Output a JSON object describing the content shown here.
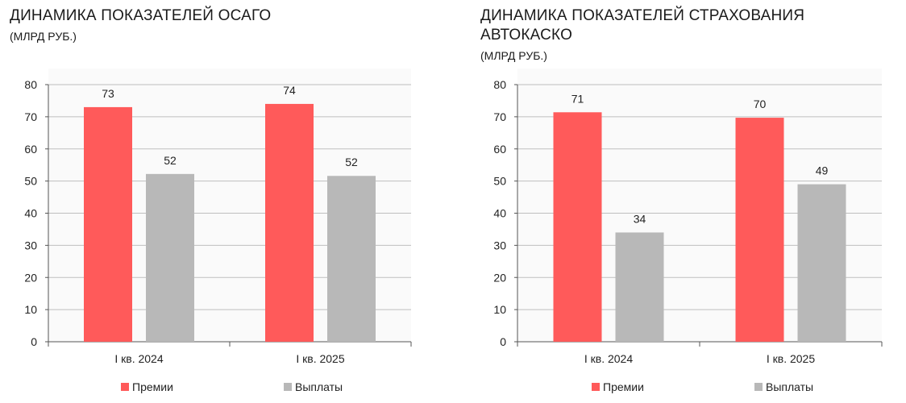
{
  "colors": {
    "premium": "#ff5a5a",
    "payout": "#b8b8b8",
    "grid": "#bfbfbf",
    "axis": "#555555",
    "plot_bg": "#fafafa"
  },
  "chart_data": [
    {
      "type": "bar",
      "title": "ДИНАМИКА ПОКАЗАТЕЛЕЙ ОСАГО",
      "subtitle": "(МЛРД РУБ.)",
      "categories": [
        "I кв. 2024",
        "I кв. 2025"
      ],
      "series": [
        {
          "name": "Премии",
          "values": [
            73,
            74
          ]
        },
        {
          "name": "Выплаты",
          "values": [
            52,
            52
          ]
        }
      ],
      "data_labels": [
        [
          "73",
          "74"
        ],
        [
          "52",
          "52"
        ]
      ],
      "precise_values": [
        [
          73,
          74
        ],
        [
          52.2,
          51.6
        ]
      ],
      "ylim": [
        0,
        80
      ],
      "yticks": [
        "0",
        "10",
        "20",
        "30",
        "40",
        "50",
        "60",
        "70",
        "80"
      ],
      "grid": true,
      "legend": "bottom"
    },
    {
      "type": "bar",
      "title": "ДИНАМИКА ПОКАЗАТЕЛЕЙ СТРАХОВАНИЯ АВТОКАСКО",
      "subtitle": "(МЛРД РУБ.)",
      "categories": [
        "I кв. 2024",
        "I кв. 2025"
      ],
      "series": [
        {
          "name": "Премии",
          "values": [
            71,
            70
          ]
        },
        {
          "name": "Выплаты",
          "values": [
            34,
            49
          ]
        }
      ],
      "data_labels": [
        [
          "71",
          "70"
        ],
        [
          "34",
          "49"
        ]
      ],
      "precise_values": [
        [
          71.4,
          69.7
        ],
        [
          34,
          49
        ]
      ],
      "ylim": [
        0,
        80
      ],
      "yticks": [
        "0",
        "10",
        "20",
        "30",
        "40",
        "50",
        "60",
        "70",
        "80"
      ],
      "grid": true,
      "legend": "bottom"
    }
  ]
}
